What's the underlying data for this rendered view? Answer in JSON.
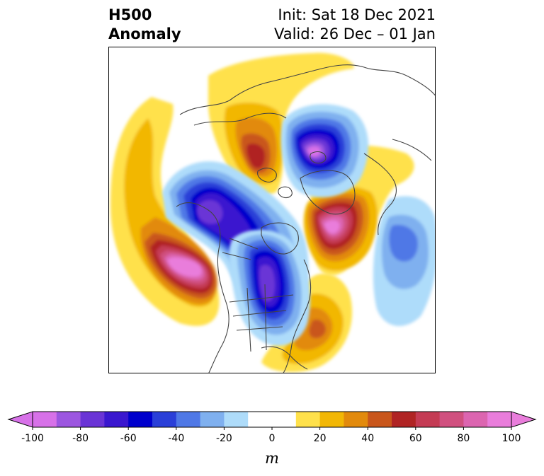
{
  "header": {
    "variable": "H500",
    "kind": "Anomaly",
    "init": "Init: Sat 18 Dec 2021",
    "valid": "Valid: 26 Dec – 01 Jan"
  },
  "map": {
    "projection": "north-polar-stereographic",
    "region": "North America / North Pole",
    "centers": [
      {
        "name": "positive-anomaly-north-pacific",
        "sign": "+",
        "peak_m": 100
      },
      {
        "name": "positive-anomaly-greenland-iceland",
        "sign": "+",
        "peak_m": 100
      },
      {
        "name": "positive-anomaly-siberia",
        "sign": "+",
        "peak_m": 60
      },
      {
        "name": "positive-anomaly-western-atlantic",
        "sign": "+",
        "peak_m": 50
      },
      {
        "name": "negative-anomaly-north-pole-russia",
        "sign": "-",
        "peak_m": -100
      },
      {
        "name": "negative-anomaly-alaska-bering",
        "sign": "-",
        "peak_m": -80
      },
      {
        "name": "negative-anomaly-central-canada",
        "sign": "-",
        "peak_m": -90
      },
      {
        "name": "negative-anomaly-eastern-atlantic",
        "sign": "-",
        "peak_m": -40
      }
    ]
  },
  "colorbar": {
    "min": -100,
    "max": 100,
    "step": 10,
    "ticks": [
      "-100",
      "-80",
      "-60",
      "-40",
      "-20",
      "0",
      "20",
      "40",
      "60",
      "80",
      "100"
    ],
    "unit": "m",
    "extend": "both",
    "colors": [
      "#d771e8",
      "#9c56e0",
      "#6a34d6",
      "#3a17cf",
      "#0000cc",
      "#2a3fd8",
      "#4f78e6",
      "#7fb0ef",
      "#aedcfa",
      "#ffffff",
      "#ffffff",
      "#ffe14b",
      "#f2b705",
      "#e28a0c",
      "#c9561b",
      "#b02424",
      "#c43b54",
      "#d0507f",
      "#dc65b0",
      "#e97ddb"
    ]
  }
}
